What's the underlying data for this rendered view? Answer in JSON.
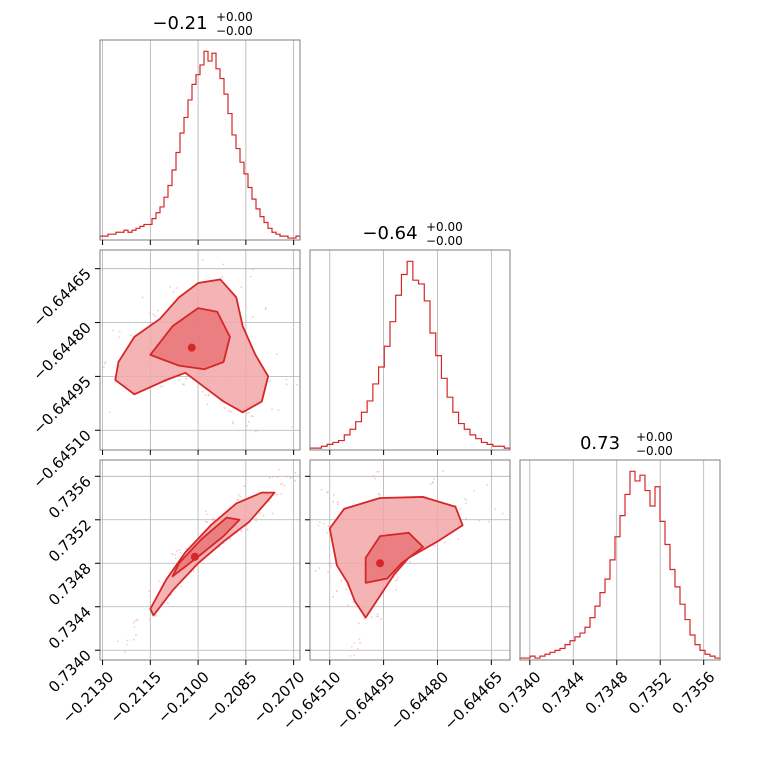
{
  "chart_data": {
    "type": "corner",
    "color": "#d62728",
    "fill_color": "#f2a7a9",
    "grid": true,
    "parameters": [
      {
        "title": {
          "value": "−0.21",
          "sup": "+0.00",
          "sub": "−0.00"
        },
        "ticks": [
          -0.213,
          -0.2115,
          -0.21,
          -0.2085,
          -0.207
        ],
        "tick_labels": [
          "−0.2130",
          "−0.2115",
          "−0.2100",
          "−0.2085",
          "−0.2070"
        ],
        "range": [
          -0.21308,
          -0.2068
        ],
        "hist_range": [
          -0.21308,
          -0.2068
        ],
        "hist_counts": [
          2,
          2,
          3,
          3,
          4,
          4,
          5,
          4,
          5,
          6,
          7,
          8,
          8,
          11,
          14,
          17,
          22,
          28,
          36,
          45,
          55,
          63,
          72,
          80,
          85,
          90,
          97,
          92,
          96,
          88,
          83,
          75,
          65,
          54,
          47,
          40,
          34,
          27,
          21,
          16,
          12,
          9,
          6,
          4,
          3,
          2,
          2,
          1,
          1,
          2
        ]
      },
      {
        "title": {
          "value": "−0.64",
          "sup": "+0.00",
          "sub": "−0.00"
        },
        "ticks": [
          -0.6451,
          -0.64495,
          -0.6448,
          -0.64465
        ],
        "tick_labels": [
          "−0.64510",
          "−0.64495",
          "−0.64480",
          "−0.64465"
        ],
        "range": [
          -0.645155,
          -0.644598
        ],
        "hist_range": [
          -0.645155,
          -0.644598
        ],
        "hist_counts": [
          1,
          1,
          2,
          3,
          4,
          5,
          8,
          11,
          15,
          20,
          26,
          35,
          44,
          55,
          68,
          82,
          93,
          100,
          90,
          88,
          79,
          62,
          50,
          38,
          28,
          20,
          14,
          11,
          8,
          6,
          4,
          3,
          2,
          2,
          1
        ]
      },
      {
        "title": {
          "value": "0.73",
          "sup": "+0.00",
          "sub": "−0.00"
        },
        "ticks": [
          0.734,
          0.7344,
          0.7348,
          0.7352,
          0.7356
        ],
        "tick_labels": [
          "0.7340",
          "0.7344",
          "0.7348",
          "0.7352",
          "0.7356"
        ],
        "range": [
          0.73391,
          0.73575
        ],
        "hist_range": [
          0.73391,
          0.73575
        ],
        "hist_counts": [
          1,
          1,
          2,
          1,
          2,
          3,
          4,
          5,
          6,
          8,
          10,
          12,
          14,
          17,
          22,
          28,
          35,
          42,
          52,
          64,
          75,
          86,
          98,
          93,
          96,
          88,
          80,
          90,
          72,
          60,
          47,
          38,
          29,
          21,
          13,
          8,
          5,
          3,
          2,
          1
        ]
      }
    ],
    "joint_regions": [
      {
        "x_param": 0,
        "y_param": 1,
        "density_mode": [
          -0.2102,
          -0.64487
        ],
        "contour_outer": [
          [
            -0.2125,
            -0.64491
          ],
          [
            -0.212,
            -0.64484
          ],
          [
            -0.2112,
            -0.64479
          ],
          [
            -0.2106,
            -0.64473
          ],
          [
            -0.21,
            -0.64469
          ],
          [
            -0.2093,
            -0.64468
          ],
          [
            -0.2088,
            -0.64473
          ],
          [
            -0.2086,
            -0.64481
          ],
          [
            -0.2082,
            -0.64489
          ],
          [
            -0.2078,
            -0.64495
          ],
          [
            -0.208,
            -0.64502
          ],
          [
            -0.2086,
            -0.64505
          ],
          [
            -0.2092,
            -0.64502
          ],
          [
            -0.2098,
            -0.64498
          ],
          [
            -0.2104,
            -0.64494
          ],
          [
            -0.211,
            -0.64496
          ],
          [
            -0.212,
            -0.645
          ],
          [
            -0.2126,
            -0.64496
          ]
        ],
        "contour_inner": [
          [
            -0.2115,
            -0.64489
          ],
          [
            -0.2108,
            -0.64481
          ],
          [
            -0.21,
            -0.64476
          ],
          [
            -0.2094,
            -0.64477
          ],
          [
            -0.209,
            -0.64484
          ],
          [
            -0.2092,
            -0.64491
          ],
          [
            -0.2098,
            -0.64493
          ],
          [
            -0.2106,
            -0.64492
          ]
        ]
      },
      {
        "x_param": 0,
        "y_param": 2,
        "density_mode": [
          -0.2101,
          0.73486
        ],
        "contour_outer": [
          [
            -0.2114,
            0.73432
          ],
          [
            -0.2108,
            0.73455
          ],
          [
            -0.21,
            0.7348
          ],
          [
            -0.2092,
            0.735
          ],
          [
            -0.2084,
            0.73518
          ],
          [
            -0.2078,
            0.73538
          ],
          [
            -0.2076,
            0.73545
          ],
          [
            -0.208,
            0.73545
          ],
          [
            -0.2088,
            0.73535
          ],
          [
            -0.2096,
            0.73515
          ],
          [
            -0.2104,
            0.7349
          ],
          [
            -0.211,
            0.73465
          ],
          [
            -0.2115,
            0.73438
          ]
        ],
        "contour_inner": [
          [
            -0.2108,
            0.73468
          ],
          [
            -0.21,
            0.73486
          ],
          [
            -0.2092,
            0.73505
          ],
          [
            -0.2087,
            0.7352
          ],
          [
            -0.2091,
            0.73522
          ],
          [
            -0.2099,
            0.73502
          ],
          [
            -0.2106,
            0.7348
          ]
        ]
      },
      {
        "x_param": 1,
        "y_param": 2,
        "density_mode": [
          -0.64496,
          0.7348
        ],
        "contour_outer": [
          [
            -0.645,
            0.7343
          ],
          [
            -0.64503,
            0.73445
          ],
          [
            -0.64505,
            0.73462
          ],
          [
            -0.64508,
            0.73478
          ],
          [
            -0.6451,
            0.73512
          ],
          [
            -0.64506,
            0.7353
          ],
          [
            -0.64496,
            0.7354
          ],
          [
            -0.64484,
            0.73541
          ],
          [
            -0.64475,
            0.73532
          ],
          [
            -0.64473,
            0.73515
          ],
          [
            -0.6448,
            0.735
          ],
          [
            -0.64488,
            0.73485
          ],
          [
            -0.64492,
            0.7347
          ],
          [
            -0.64496,
            0.7345
          ]
        ],
        "contour_inner": [
          [
            -0.645,
            0.73462
          ],
          [
            -0.645,
            0.73485
          ],
          [
            -0.64496,
            0.73505
          ],
          [
            -0.64488,
            0.73508
          ],
          [
            -0.64484,
            0.73495
          ],
          [
            -0.6449,
            0.7348
          ],
          [
            -0.64494,
            0.73466
          ]
        ]
      }
    ]
  }
}
